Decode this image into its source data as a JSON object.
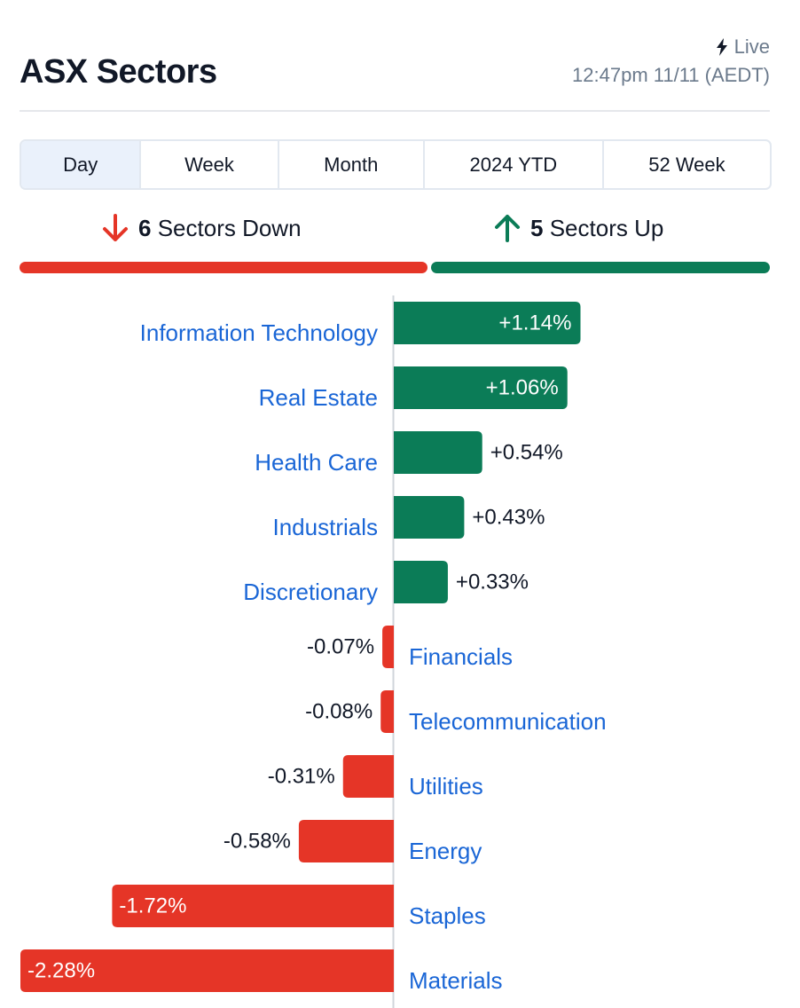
{
  "header": {
    "title": "ASX Sectors",
    "live_label": "Live",
    "timestamp": "12:47pm 11/11 (AEDT)"
  },
  "tabs": [
    {
      "label": "Day",
      "active": true
    },
    {
      "label": "Week",
      "active": false
    },
    {
      "label": "Month",
      "active": false
    },
    {
      "label": "2024 YTD",
      "active": false
    },
    {
      "label": "52 Week",
      "active": false
    }
  ],
  "summary": {
    "down_count": "6",
    "down_label": "Sectors Down",
    "up_count": "5",
    "up_label": "Sectors Up"
  },
  "colors": {
    "positive": "#0b7c57",
    "negative": "#e53527",
    "link": "#1a66d6",
    "text": "#111827",
    "muted": "#6b7a8c"
  },
  "chart_data": {
    "type": "bar",
    "orientation": "horizontal",
    "categories": [
      "Information Technology",
      "Real Estate",
      "Health Care",
      "Industrials",
      "Discretionary",
      "Financials",
      "Telecommunication",
      "Utilities",
      "Energy",
      "Staples",
      "Materials"
    ],
    "values": [
      1.14,
      1.06,
      0.54,
      0.43,
      0.33,
      -0.07,
      -0.08,
      -0.31,
      -0.58,
      -1.72,
      -2.28
    ],
    "labels": [
      "+1.14%",
      "+1.06%",
      "+0.54%",
      "+0.43%",
      "+0.33%",
      "-0.07%",
      "-0.08%",
      "-0.31%",
      "-0.58%",
      "-1.72%",
      "-2.28%"
    ],
    "xlim": [
      -2.28,
      2.28
    ],
    "grid": false
  }
}
